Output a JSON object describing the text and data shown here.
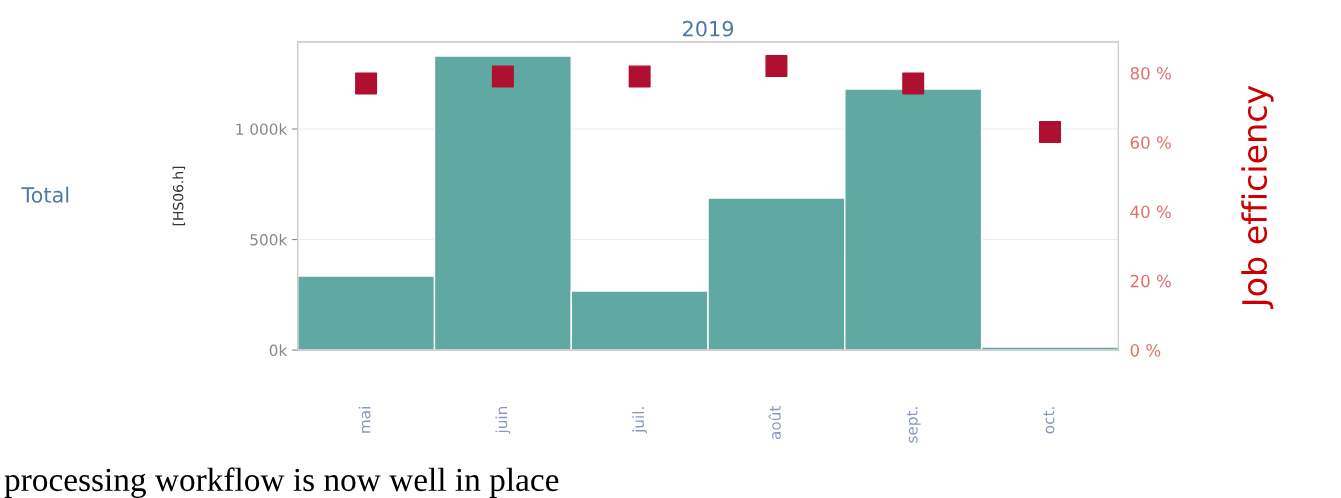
{
  "chart_data": {
    "type": "bar",
    "title": "2019",
    "ylabel": "[HS06.h]",
    "y2label": "Job efficiency",
    "annotations": [
      "Total",
      "processing workflow is now well in place"
    ],
    "categories": [
      "mai",
      "juin",
      "juil.",
      "août",
      "sept.",
      "oct."
    ],
    "series": [
      {
        "color": "#5fa9a2",
        "values": [
          335000,
          1330000,
          267000,
          688000,
          1181000,
          14000
        ]
      },
      {
        "type": "scatter",
        "axis": "y2",
        "color": "#b01030",
        "marker": "square",
        "values": [
          77,
          79,
          79,
          82,
          77,
          63
        ]
      }
    ],
    "ylim": [
      0,
      1394000
    ],
    "yticks": [
      {
        "value": 0,
        "label": "0k"
      },
      {
        "value": 500000,
        "label": "500k"
      },
      {
        "value": 1000000,
        "label": "1 000k"
      }
    ],
    "y2lim": [
      0,
      89
    ],
    "y2ticks": [
      {
        "value": 0,
        "label": "0 %"
      },
      {
        "value": 20,
        "label": "20 %"
      },
      {
        "value": 40,
        "label": "40 %"
      },
      {
        "value": 60,
        "label": "60 %"
      },
      {
        "value": 80,
        "label": "80 %"
      }
    ],
    "grid": "y",
    "legend": false
  }
}
